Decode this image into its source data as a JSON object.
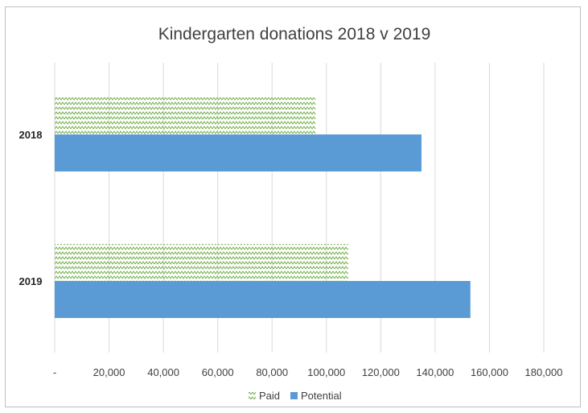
{
  "chart_data": {
    "type": "bar",
    "orientation": "horizontal",
    "title": "Kindergarten donations 2018 v 2019",
    "categories": [
      "2018",
      "2019"
    ],
    "series": [
      {
        "name": "Paid",
        "values": [
          96000,
          108000
        ],
        "color": "#70ad47",
        "pattern": "zigzag"
      },
      {
        "name": "Potential",
        "values": [
          135000,
          153000
        ],
        "color": "#5b9bd5"
      }
    ],
    "xlim": [
      0,
      180000
    ],
    "x_ticks": [
      0,
      20000,
      40000,
      60000,
      80000,
      100000,
      120000,
      140000,
      160000,
      180000
    ],
    "x_tick_labels": [
      "-",
      "20,000",
      "40,000",
      "60,000",
      "80,000",
      "100,000",
      "120,000",
      "140,000",
      "160,000",
      "180,000"
    ],
    "grid": true,
    "legend": "bottom"
  }
}
